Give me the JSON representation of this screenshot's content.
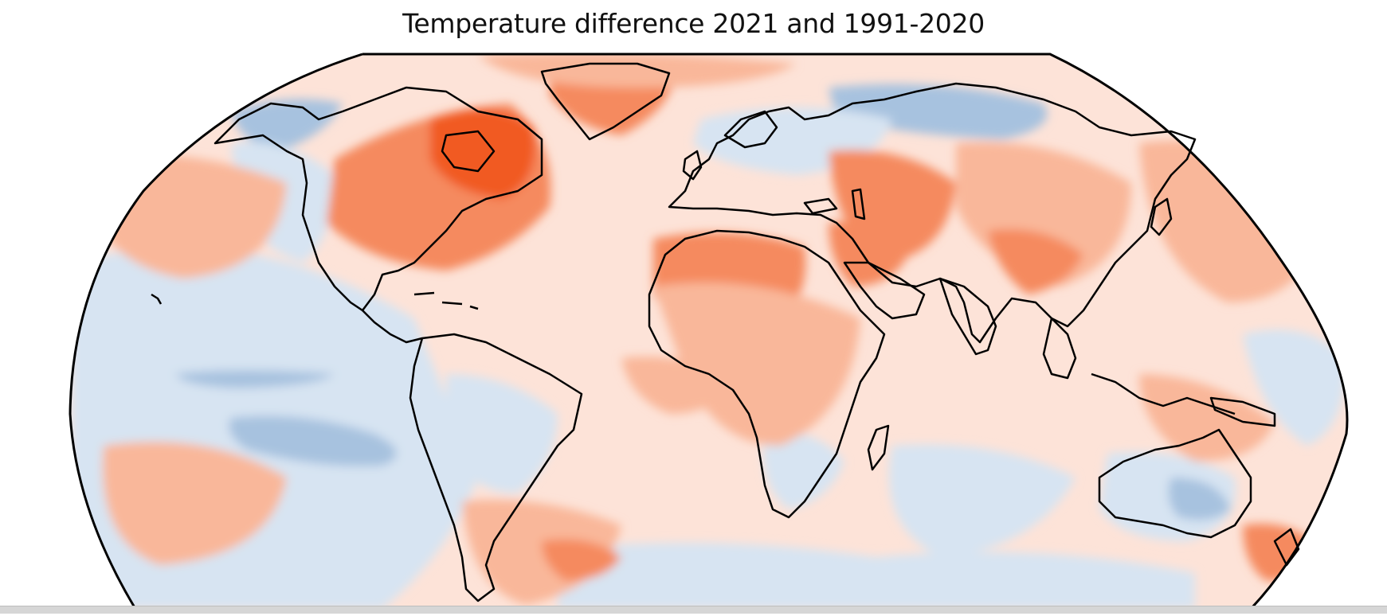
{
  "map": {
    "title": "Temperature difference 2021 and 1991-2020",
    "projection": "robinson",
    "colors": {
      "strong_warm": "#f15a22",
      "warm": "#f58a5e",
      "mild_warm": "#f9b79a",
      "slight_warm": "#fde3d8",
      "slight_cool": "#d7e4f2",
      "cool": "#a7c2df",
      "strong_cool": "#7ba2cd",
      "coastline": "#000000"
    }
  }
}
